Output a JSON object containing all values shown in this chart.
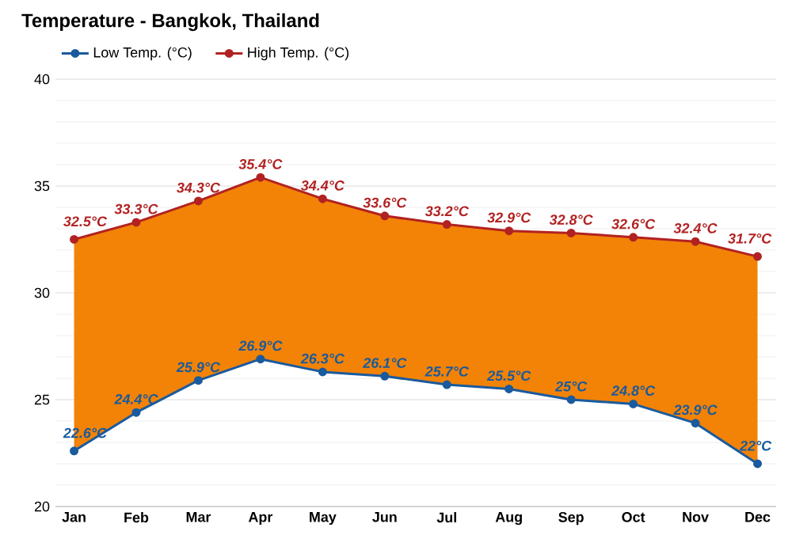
{
  "chart_data": {
    "type": "line",
    "title": "Temperature - Bangkok, Thailand",
    "categories": [
      "Jan",
      "Feb",
      "Mar",
      "Apr",
      "May",
      "Jun",
      "Jul",
      "Aug",
      "Sep",
      "Oct",
      "Nov",
      "Dec"
    ],
    "series": [
      {
        "name": "Low Temp. (°C)",
        "color": "#1a5a9e",
        "values": [
          22.6,
          24.4,
          25.9,
          26.9,
          26.3,
          26.1,
          25.7,
          25.5,
          25,
          24.8,
          23.9,
          22
        ],
        "value_labels": [
          "22.6°C",
          "24.4°C",
          "25.9°C",
          "26.9°C",
          "26.3°C",
          "26.1°C",
          "25.7°C",
          "25.5°C",
          "25°C",
          "24.8°C",
          "23.9°C",
          "22°C"
        ]
      },
      {
        "name": "High Temp. (°C)",
        "color": "#b22222",
        "values": [
          32.5,
          33.3,
          34.3,
          35.4,
          34.4,
          33.6,
          33.2,
          32.9,
          32.8,
          32.6,
          32.4,
          31.7
        ],
        "value_labels": [
          "32.5°C",
          "33.3°C",
          "34.3°C",
          "35.4°C",
          "34.4°C",
          "33.6°C",
          "33.2°C",
          "32.9°C",
          "32.8°C",
          "32.6°C",
          "32.4°C",
          "31.7°C"
        ],
        "lower": [
          22.6,
          24.4,
          25.9,
          26.9,
          26.3,
          26.1,
          25.7,
          25.5,
          25,
          24.8,
          23.9,
          22
        ],
        "upper": [
          32.5,
          33.3,
          34.3,
          35.4,
          34.4,
          33.6,
          33.2,
          32.9,
          32.8,
          32.6,
          32.4,
          31.7
        ]
      }
    ],
    "ylim": [
      20,
      40
    ],
    "yticks": [
      20,
      25,
      30,
      35,
      40
    ],
    "grid": "y",
    "legend": "top left",
    "marker": "circle",
    "line_style": "solid"
  }
}
